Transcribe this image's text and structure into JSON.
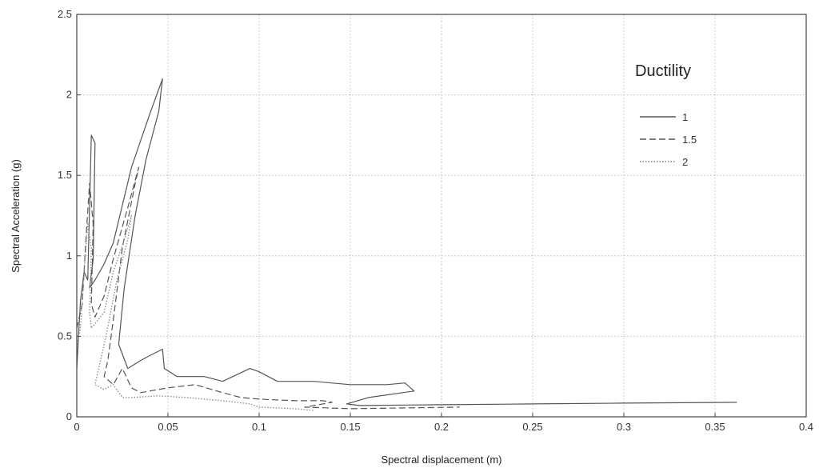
{
  "chart_data": {
    "type": "line",
    "xlabel": "Spectral displacement (m)",
    "ylabel": "Spectral Acceleration (g)",
    "xlim": [
      0,
      0.4
    ],
    "ylim": [
      0,
      2.5
    ],
    "x_ticks": [
      "0",
      "0.05",
      "0.1",
      "0.15",
      "0.2",
      "0.25",
      "0.3",
      "0.35",
      "0.4"
    ],
    "y_ticks": [
      "0",
      "0.5",
      "1",
      "1.5",
      "2",
      "2.5"
    ],
    "grid": true,
    "legend": {
      "title": "Ductility",
      "placement": "top-right"
    },
    "series": [
      {
        "name": "1",
        "line_style": "solid",
        "color": "#555555",
        "points": [
          [
            0.0,
            0.3
          ],
          [
            0.002,
            0.72
          ],
          [
            0.004,
            0.9
          ],
          [
            0.006,
            0.85
          ],
          [
            0.008,
            1.75
          ],
          [
            0.01,
            1.7
          ],
          [
            0.009,
            0.98
          ],
          [
            0.007,
            0.8
          ],
          [
            0.01,
            0.85
          ],
          [
            0.015,
            0.95
          ],
          [
            0.02,
            1.08
          ],
          [
            0.03,
            1.55
          ],
          [
            0.04,
            1.88
          ],
          [
            0.047,
            2.1
          ],
          [
            0.045,
            1.9
          ],
          [
            0.038,
            1.6
          ],
          [
            0.032,
            1.25
          ],
          [
            0.026,
            0.8
          ],
          [
            0.023,
            0.45
          ],
          [
            0.028,
            0.3
          ],
          [
            0.035,
            0.35
          ],
          [
            0.04,
            0.38
          ],
          [
            0.047,
            0.42
          ],
          [
            0.048,
            0.3
          ],
          [
            0.055,
            0.25
          ],
          [
            0.07,
            0.25
          ],
          [
            0.08,
            0.22
          ],
          [
            0.095,
            0.3
          ],
          [
            0.1,
            0.28
          ],
          [
            0.11,
            0.22
          ],
          [
            0.13,
            0.22
          ],
          [
            0.15,
            0.2
          ],
          [
            0.17,
            0.2
          ],
          [
            0.18,
            0.21
          ],
          [
            0.185,
            0.16
          ],
          [
            0.16,
            0.12
          ],
          [
            0.148,
            0.08
          ],
          [
            0.155,
            0.07
          ],
          [
            0.2,
            0.075
          ],
          [
            0.25,
            0.08
          ],
          [
            0.3,
            0.085
          ],
          [
            0.362,
            0.09
          ]
        ]
      },
      {
        "name": "1.5",
        "line_style": "dashed",
        "color": "#555555",
        "points": [
          [
            0.0,
            0.55
          ],
          [
            0.003,
            0.7
          ],
          [
            0.005,
            1.1
          ],
          [
            0.007,
            1.45
          ],
          [
            0.009,
            1.2
          ],
          [
            0.008,
            0.7
          ],
          [
            0.01,
            0.62
          ],
          [
            0.015,
            0.75
          ],
          [
            0.02,
            0.98
          ],
          [
            0.028,
            1.3
          ],
          [
            0.034,
            1.55
          ],
          [
            0.032,
            1.45
          ],
          [
            0.025,
            1.05
          ],
          [
            0.02,
            0.6
          ],
          [
            0.017,
            0.35
          ],
          [
            0.015,
            0.25
          ],
          [
            0.02,
            0.2
          ],
          [
            0.025,
            0.3
          ],
          [
            0.03,
            0.18
          ],
          [
            0.035,
            0.15
          ],
          [
            0.05,
            0.18
          ],
          [
            0.065,
            0.2
          ],
          [
            0.08,
            0.15
          ],
          [
            0.09,
            0.12
          ],
          [
            0.1,
            0.11
          ],
          [
            0.12,
            0.1
          ],
          [
            0.135,
            0.1
          ],
          [
            0.14,
            0.09
          ],
          [
            0.125,
            0.06
          ],
          [
            0.15,
            0.05
          ],
          [
            0.18,
            0.055
          ],
          [
            0.21,
            0.06
          ]
        ]
      },
      {
        "name": "2",
        "line_style": "dotted",
        "color": "#8f8f8f",
        "points": [
          [
            0.0,
            0.45
          ],
          [
            0.002,
            0.55
          ],
          [
            0.004,
            0.9
          ],
          [
            0.006,
            1.2
          ],
          [
            0.008,
            1.05
          ],
          [
            0.007,
            0.65
          ],
          [
            0.008,
            0.55
          ],
          [
            0.015,
            0.65
          ],
          [
            0.02,
            0.9
          ],
          [
            0.026,
            1.1
          ],
          [
            0.03,
            1.25
          ],
          [
            0.028,
            1.1
          ],
          [
            0.022,
            0.85
          ],
          [
            0.016,
            0.5
          ],
          [
            0.012,
            0.3
          ],
          [
            0.01,
            0.2
          ],
          [
            0.015,
            0.17
          ],
          [
            0.02,
            0.2
          ],
          [
            0.025,
            0.12
          ],
          [
            0.03,
            0.12
          ],
          [
            0.045,
            0.13
          ],
          [
            0.06,
            0.12
          ],
          [
            0.08,
            0.1
          ],
          [
            0.095,
            0.08
          ],
          [
            0.1,
            0.06
          ],
          [
            0.12,
            0.05
          ],
          [
            0.13,
            0.04
          ]
        ]
      }
    ]
  }
}
